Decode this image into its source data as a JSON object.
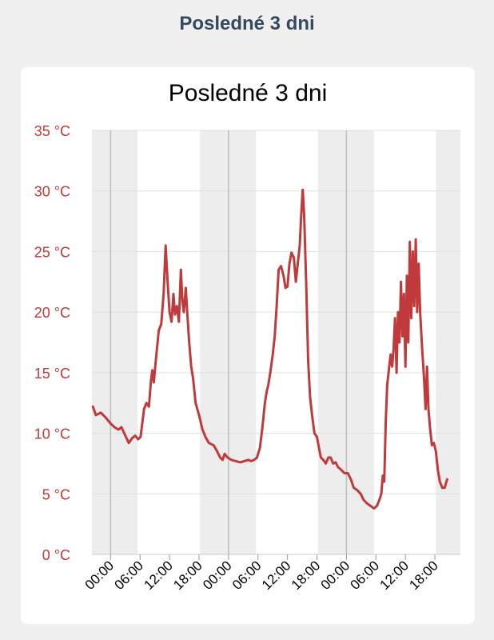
{
  "header": {
    "title": "Posledné 3 dni"
  },
  "chart_data": {
    "type": "line",
    "title": "Posledné 3 dni",
    "xlabel": "",
    "ylabel": "",
    "x_unit": "hours",
    "x_range": [
      -3.8,
      71.2
    ],
    "ylim": [
      0,
      35
    ],
    "y_ticks": [
      {
        "value": 0,
        "label": "0 °C"
      },
      {
        "value": 5,
        "label": "5 °C"
      },
      {
        "value": 10,
        "label": "10 °C"
      },
      {
        "value": 15,
        "label": "15 °C"
      },
      {
        "value": 20,
        "label": "20 °C"
      },
      {
        "value": 25,
        "label": "25 °C"
      },
      {
        "value": 30,
        "label": "30 °C"
      },
      {
        "value": 35,
        "label": "35 °C"
      }
    ],
    "x_ticks": [
      {
        "value": 0,
        "label": "00:00"
      },
      {
        "value": 6,
        "label": "06:00"
      },
      {
        "value": 12,
        "label": "12:00"
      },
      {
        "value": 18,
        "label": "18:00"
      },
      {
        "value": 24,
        "label": "00:00"
      },
      {
        "value": 30,
        "label": "06:00"
      },
      {
        "value": 36,
        "label": "12:00"
      },
      {
        "value": 42,
        "label": "18:00"
      },
      {
        "value": 48,
        "label": "00:00"
      },
      {
        "value": 54,
        "label": "06:00"
      },
      {
        "value": 60,
        "label": "12:00"
      },
      {
        "value": 66,
        "label": "18:00"
      }
    ],
    "night_bands": [
      [
        -3.8,
        5.5
      ],
      [
        18.2,
        29.6
      ],
      [
        42.2,
        53.6
      ],
      [
        66.2,
        71.2
      ]
    ],
    "midnight_lines": [
      0,
      24,
      48
    ],
    "grid": true,
    "colors": {
      "line": "#c0393b",
      "axis_labels": "#c0393b",
      "night_band": "#ededed",
      "grid": "#e0e0e0",
      "midnight_line": "#bdbdbd",
      "page_title": "#34495e",
      "card": "#ffffff",
      "background": "#f0f0f0"
    },
    "series": [
      {
        "values": [
          [
            -3.6,
            12.2
          ],
          [
            -3.0,
            11.5
          ],
          [
            -2.0,
            11.7
          ],
          [
            -1.0,
            11.3
          ],
          [
            0.0,
            10.8
          ],
          [
            0.8,
            10.5
          ],
          [
            1.6,
            10.3
          ],
          [
            2.2,
            10.5
          ],
          [
            3.0,
            9.8
          ],
          [
            3.7,
            9.2
          ],
          [
            4.4,
            9.6
          ],
          [
            5.0,
            9.8
          ],
          [
            5.6,
            9.5
          ],
          [
            6.1,
            9.7
          ],
          [
            6.8,
            12.0
          ],
          [
            7.3,
            12.5
          ],
          [
            7.8,
            12.2
          ],
          [
            8.2,
            14.3
          ],
          [
            8.5,
            15.2
          ],
          [
            8.8,
            14.2
          ],
          [
            9.2,
            16.0
          ],
          [
            9.8,
            18.5
          ],
          [
            10.3,
            19.0
          ],
          [
            10.8,
            21.5
          ],
          [
            11.2,
            25.5
          ],
          [
            11.6,
            22.5
          ],
          [
            12.0,
            20.0
          ],
          [
            12.4,
            19.2
          ],
          [
            12.8,
            21.5
          ],
          [
            13.1,
            19.8
          ],
          [
            13.5,
            20.5
          ],
          [
            13.9,
            19.2
          ],
          [
            14.3,
            23.5
          ],
          [
            14.6,
            21.0
          ],
          [
            14.9,
            20.0
          ],
          [
            15.3,
            22.0
          ],
          [
            15.6,
            20.0
          ],
          [
            16.0,
            17.5
          ],
          [
            16.4,
            15.5
          ],
          [
            16.8,
            14.5
          ],
          [
            17.3,
            12.5
          ],
          [
            18.0,
            11.5
          ],
          [
            18.7,
            10.3
          ],
          [
            19.3,
            9.7
          ],
          [
            20.0,
            9.2
          ],
          [
            21.0,
            9.0
          ],
          [
            21.7,
            8.5
          ],
          [
            22.3,
            8.0
          ],
          [
            22.8,
            7.8
          ],
          [
            23.2,
            8.3
          ],
          [
            23.8,
            8.0
          ],
          [
            24.6,
            7.8
          ],
          [
            25.5,
            7.7
          ],
          [
            26.4,
            7.6
          ],
          [
            27.2,
            7.7
          ],
          [
            28.0,
            7.8
          ],
          [
            28.6,
            7.7
          ],
          [
            29.2,
            7.8
          ],
          [
            29.8,
            8.0
          ],
          [
            30.4,
            8.8
          ],
          [
            30.9,
            10.5
          ],
          [
            31.4,
            12.5
          ],
          [
            31.8,
            13.5
          ],
          [
            32.1,
            14.0
          ],
          [
            32.5,
            15.0
          ],
          [
            33.0,
            16.5
          ],
          [
            33.4,
            18.0
          ],
          [
            33.8,
            20.5
          ],
          [
            34.2,
            23.5
          ],
          [
            34.7,
            23.8
          ],
          [
            35.2,
            23.0
          ],
          [
            35.6,
            22.0
          ],
          [
            36.0,
            22.1
          ],
          [
            36.4,
            24.0
          ],
          [
            36.8,
            24.9
          ],
          [
            37.3,
            24.5
          ],
          [
            37.7,
            22.5
          ],
          [
            38.1,
            24.0
          ],
          [
            38.5,
            25.5
          ],
          [
            38.8,
            28.0
          ],
          [
            39.1,
            30.1
          ],
          [
            39.4,
            28.0
          ],
          [
            39.8,
            22.5
          ],
          [
            40.2,
            16.0
          ],
          [
            40.6,
            13.0
          ],
          [
            41.0,
            11.5
          ],
          [
            41.5,
            10.0
          ],
          [
            42.0,
            9.7
          ],
          [
            42.4,
            8.8
          ],
          [
            42.8,
            8.0
          ],
          [
            43.3,
            7.8
          ],
          [
            43.8,
            7.5
          ],
          [
            44.3,
            8.0
          ],
          [
            44.8,
            8.0
          ],
          [
            45.3,
            7.5
          ],
          [
            45.8,
            7.6
          ],
          [
            46.3,
            7.2
          ],
          [
            46.9,
            7.0
          ],
          [
            47.6,
            6.7
          ],
          [
            48.3,
            6.7
          ],
          [
            48.9,
            6.2
          ],
          [
            49.5,
            5.5
          ],
          [
            50.2,
            5.3
          ],
          [
            50.9,
            5.0
          ],
          [
            51.5,
            4.5
          ],
          [
            52.2,
            4.2
          ],
          [
            52.9,
            4.0
          ],
          [
            53.6,
            3.8
          ],
          [
            54.2,
            4.0
          ],
          [
            54.7,
            4.5
          ],
          [
            55.1,
            5.0
          ],
          [
            55.4,
            6.5
          ],
          [
            55.7,
            6.0
          ],
          [
            56.0,
            11.0
          ],
          [
            56.3,
            14.0
          ],
          [
            56.7,
            15.5
          ],
          [
            57.0,
            16.5
          ],
          [
            57.3,
            15.5
          ],
          [
            57.6,
            17.0
          ],
          [
            57.9,
            19.5
          ],
          [
            58.2,
            15.0
          ],
          [
            58.5,
            20.0
          ],
          [
            58.8,
            17.5
          ],
          [
            59.1,
            22.5
          ],
          [
            59.4,
            18.0
          ],
          [
            59.7,
            21.5
          ],
          [
            60.0,
            15.5
          ],
          [
            60.3,
            23.0
          ],
          [
            60.6,
            17.5
          ],
          [
            60.9,
            25.8
          ],
          [
            61.2,
            19.5
          ],
          [
            61.5,
            25.0
          ],
          [
            61.8,
            20.5
          ],
          [
            62.1,
            26.0
          ],
          [
            62.4,
            20.0
          ],
          [
            62.7,
            24.0
          ],
          [
            63.0,
            20.0
          ],
          [
            63.4,
            17.0
          ],
          [
            63.8,
            14.5
          ],
          [
            64.1,
            12.0
          ],
          [
            64.4,
            15.5
          ],
          [
            64.7,
            12.0
          ],
          [
            65.0,
            10.5
          ],
          [
            65.4,
            9.0
          ],
          [
            65.8,
            9.2
          ],
          [
            66.2,
            8.5
          ],
          [
            66.6,
            7.0
          ],
          [
            67.0,
            6.0
          ],
          [
            67.5,
            5.5
          ],
          [
            68.0,
            5.5
          ],
          [
            68.5,
            6.2
          ]
        ]
      }
    ]
  }
}
